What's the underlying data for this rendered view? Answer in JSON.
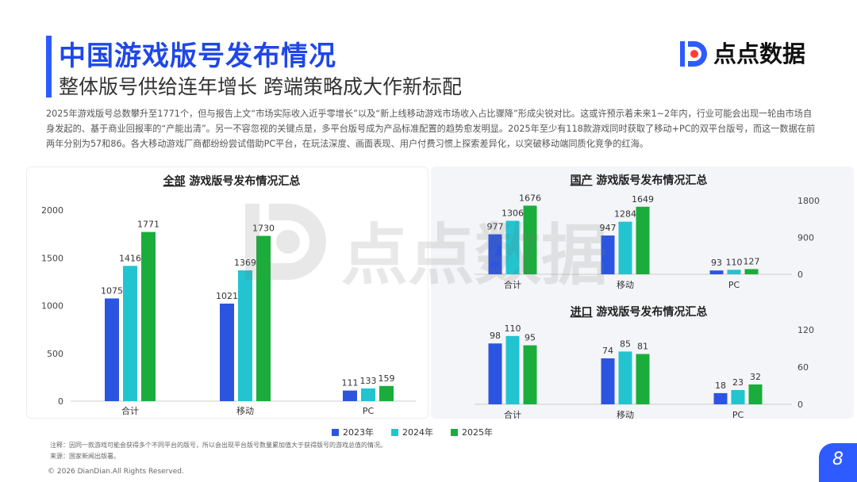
{
  "header": {
    "title": "中国游戏版号发布情况",
    "subtitle": "整体版号供给连年增长 跨端策略成大作新标配"
  },
  "logo": {
    "text": "点点数据"
  },
  "intro": "2025年游戏版号总数攀升至1771个，但与报告上文“市场实际收入近乎零增长”以及“新上线移动游戏市场收入占比骤降”形成尖锐对比。这或许预示着未来1~2年内，行业可能会出现一轮由市场自身发起的、基于商业回报率的“产能出清”。另一不容忽视的关键点是，多平台版号成为产品标准配置的趋势愈发明显。2025年至少有118款游戏同时获取了移动+PC的双平台版号，而这一数据在前两年分别为57和86。各大移动游戏厂商都纷纷尝试借助PC平台，在玩法深度、画面表现、用户付费习惯上探索差异化，以突破移动端同质化竞争的红海。",
  "colors": {
    "2023": "#2b55e0",
    "2024": "#22c4cf",
    "2025": "#1aad3c",
    "accent": "#2e5bff"
  },
  "legend": [
    "2023年",
    "2024年",
    "2025年"
  ],
  "chart_data": [
    {
      "type": "bar",
      "title_prefix": "全部",
      "title_rest": " 游戏版号发布情况汇总",
      "categories": [
        "合计",
        "移动",
        "PC"
      ],
      "series": [
        {
          "name": "2023年",
          "values": [
            1075,
            1021,
            111
          ]
        },
        {
          "name": "2024年",
          "values": [
            1416,
            1369,
            133
          ]
        },
        {
          "name": "2025年",
          "values": [
            1771,
            1730,
            159
          ]
        }
      ],
      "ylim": [
        0,
        2000
      ],
      "yticks": [
        0,
        500,
        1000,
        1500,
        2000
      ],
      "yaxis_side": "left",
      "legend": "bottom"
    },
    {
      "type": "bar",
      "title_prefix": "国产",
      "title_rest": " 游戏版号发布情况汇总",
      "categories": [
        "合计",
        "移动",
        "PC"
      ],
      "series": [
        {
          "name": "2023年",
          "values": [
            977,
            947,
            93
          ]
        },
        {
          "name": "2024年",
          "values": [
            1306,
            1284,
            110
          ]
        },
        {
          "name": "2025年",
          "values": [
            1676,
            1649,
            127
          ]
        }
      ],
      "ylim": [
        0,
        1800
      ],
      "yticks": [
        0,
        900,
        1800
      ],
      "yaxis_side": "right",
      "legend": "bottom"
    },
    {
      "type": "bar",
      "title_prefix": "进口",
      "title_rest": " 游戏版号发布情况汇总",
      "categories": [
        "合计",
        "移动",
        "PC"
      ],
      "series": [
        {
          "name": "2023年",
          "values": [
            98,
            74,
            18
          ]
        },
        {
          "name": "2024年",
          "values": [
            110,
            85,
            23
          ]
        },
        {
          "name": "2025年",
          "values": [
            95,
            81,
            32
          ]
        }
      ],
      "ylim": [
        0,
        120
      ],
      "yticks": [
        0,
        60,
        120
      ],
      "yaxis_side": "right",
      "legend": "bottom"
    }
  ],
  "footnote": {
    "line1": "注释：因同一款游戏可能会获得多个不同平台的版号，所以会出现平台版号数量累加值大于获得版号的游戏总值的情况。",
    "line2": "来源：国家新闻出版署。"
  },
  "copyright": "© 2026 DianDian.All Rights Reserved.",
  "page_number": "8"
}
